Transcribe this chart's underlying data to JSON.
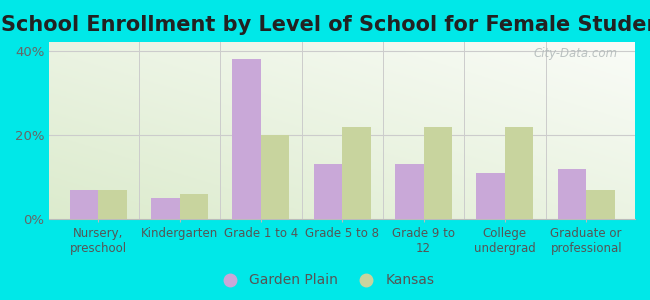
{
  "title": "School Enrollment by Level of School for Female Students",
  "categories": [
    "Nursery,\npreschool",
    "Kindergarten",
    "Grade 1 to 4",
    "Grade 5 to 8",
    "Grade 9 to\n12",
    "College\nundergrad",
    "Graduate or\nprofessional"
  ],
  "garden_plain": [
    7,
    5,
    38,
    13,
    13,
    11,
    12
  ],
  "kansas": [
    7,
    6,
    20,
    22,
    22,
    22,
    7
  ],
  "garden_plain_color": "#c9a8d8",
  "kansas_color": "#c8d49e",
  "background_color": "#00e8e8",
  "ylim": [
    0,
    42
  ],
  "yticks": [
    0,
    20,
    40
  ],
  "ytick_labels": [
    "0%",
    "20%",
    "40%"
  ],
  "bar_width": 0.35,
  "title_fontsize": 15,
  "legend_labels": [
    "Garden Plain",
    "Kansas"
  ],
  "watermark": "City-Data.com"
}
